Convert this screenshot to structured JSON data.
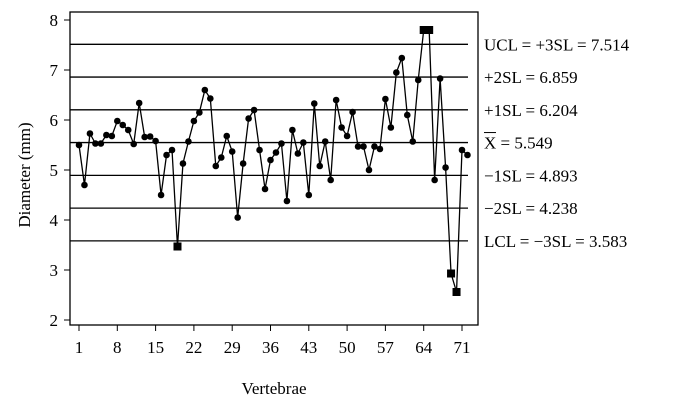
{
  "chart_data": {
    "type": "line",
    "xlabel": "Vertebrae",
    "ylabel": "Diameter (mm)",
    "ylim": [
      2,
      8
    ],
    "yticks": [
      "2",
      "3",
      "4",
      "5",
      "6",
      "7",
      "8"
    ],
    "xticks": [
      "1",
      "8",
      "15",
      "22",
      "29",
      "36",
      "43",
      "50",
      "57",
      "64",
      "71"
    ],
    "grid": false,
    "control_lines": [
      {
        "label": "UCL = +3SL = 7.514",
        "value": 7.514
      },
      {
        "label": "+2SL = 6.859",
        "value": 6.859
      },
      {
        "label": "+1SL = 6.204",
        "value": 6.204
      },
      {
        "label": "X = 5.549",
        "overline_part": "X",
        "value": 5.549
      },
      {
        "label": "−1SL = 4.893",
        "value": 4.893
      },
      {
        "label": "−2SL = 4.238",
        "value": 4.238
      },
      {
        "label": "LCL = −3SL = 3.583",
        "value": 3.583
      }
    ],
    "x": [
      1,
      2,
      3,
      4,
      5,
      6,
      7,
      8,
      9,
      10,
      11,
      12,
      13,
      14,
      15,
      16,
      17,
      18,
      19,
      20,
      21,
      22,
      23,
      24,
      25,
      26,
      27,
      28,
      29,
      30,
      31,
      32,
      33,
      34,
      35,
      36,
      37,
      38,
      39,
      40,
      41,
      42,
      43,
      44,
      45,
      46,
      47,
      48,
      49,
      50,
      51,
      52,
      53,
      54,
      55,
      56,
      57,
      58,
      59,
      60,
      61,
      62,
      63,
      64,
      65,
      66,
      67,
      68,
      69,
      70,
      71,
      72
    ],
    "values": [
      5.5,
      4.7,
      5.73,
      5.53,
      5.53,
      5.7,
      5.68,
      5.98,
      5.9,
      5.8,
      5.52,
      6.34,
      5.66,
      5.67,
      5.58,
      4.5,
      5.3,
      5.4,
      3.47,
      5.13,
      5.57,
      5.98,
      6.15,
      6.6,
      6.43,
      5.08,
      5.25,
      5.68,
      5.37,
      4.05,
      5.13,
      6.03,
      6.2,
      5.4,
      4.62,
      5.2,
      5.35,
      5.53,
      4.38,
      5.8,
      5.33,
      5.55,
      4.5,
      6.33,
      5.08,
      5.57,
      4.8,
      6.4,
      5.85,
      5.68,
      6.16,
      5.47,
      5.47,
      5.0,
      5.47,
      5.42,
      6.42,
      5.85,
      6.95,
      7.24,
      6.1,
      5.57,
      6.8,
      7.8,
      7.8,
      4.8,
      6.83,
      5.05,
      2.93,
      2.56,
      5.4,
      5.3
    ],
    "out_of_control_points": [
      19,
      64,
      65,
      69,
      70
    ]
  }
}
